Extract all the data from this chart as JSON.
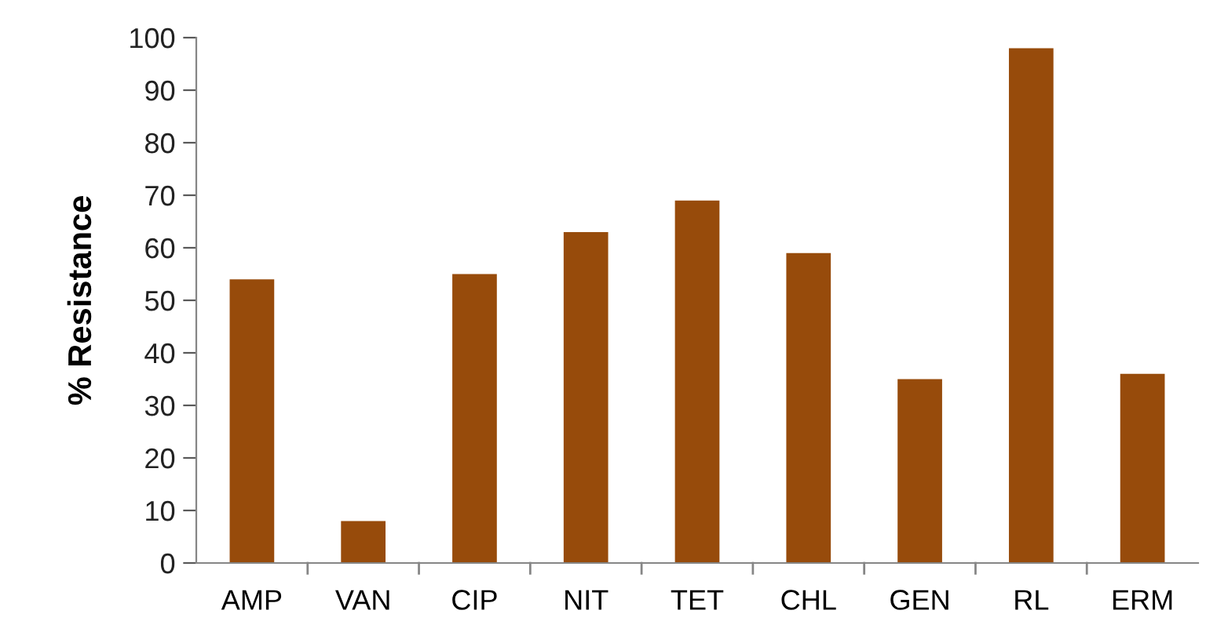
{
  "chart_data": {
    "type": "bar",
    "ylabel": "% Resistance",
    "categories": [
      "AMP",
      "VAN",
      "CIP",
      "NIT",
      "TET",
      "CHL",
      "GEN",
      "RL",
      "ERM"
    ],
    "values": [
      54,
      8,
      55,
      63,
      69,
      59,
      35,
      98,
      36
    ],
    "color": "#974b0b",
    "ylim": [
      0,
      100
    ],
    "yticks": [
      0,
      10,
      20,
      30,
      40,
      50,
      60,
      70,
      80,
      90,
      100
    ],
    "grid": false
  }
}
